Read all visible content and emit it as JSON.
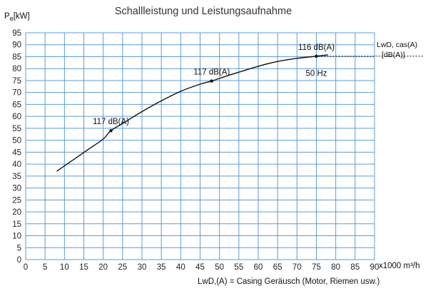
{
  "chart_data": {
    "type": "line",
    "title": "Schallleistung und Leistungsaufnahme",
    "ylabel_main": "P",
    "ylabel_sub": "e",
    "ylabel_unit": "[kW]",
    "xlabel": "x1000 m³/h",
    "xlim": [
      0,
      90
    ],
    "ylim": [
      0,
      95
    ],
    "x_ticks": [
      0,
      5,
      10,
      15,
      20,
      25,
      30,
      35,
      40,
      45,
      50,
      55,
      60,
      65,
      70,
      75,
      80,
      85,
      90
    ],
    "y_ticks": [
      0,
      5,
      10,
      15,
      20,
      25,
      30,
      35,
      40,
      45,
      50,
      55,
      60,
      65,
      70,
      75,
      80,
      85,
      90,
      95
    ],
    "grid": true,
    "series": [
      {
        "x": [
          8,
          12,
          16,
          20,
          22,
          26,
          30,
          35,
          40,
          45,
          48,
          52,
          56,
          60,
          65,
          70,
          75,
          78
        ],
        "y": [
          37,
          41.5,
          46,
          50.5,
          54,
          58,
          62,
          66.5,
          70.5,
          73.5,
          74.8,
          77,
          79,
          81,
          83,
          84.3,
          85.2,
          85.8
        ]
      }
    ],
    "markers": [
      {
        "x": 22,
        "y": 54,
        "label": "117 dB(A)"
      },
      {
        "x": 48,
        "y": 74.8,
        "label": "117 dB(A)"
      },
      {
        "x": 75,
        "y": 85.2,
        "label": "116 dB(A)"
      }
    ],
    "frequency_label": "50 Hz",
    "frequency_x": 75,
    "frequency_y": 77,
    "side_label_line1": "LwD, cas(A)",
    "side_label_line2": "[dB(A)]",
    "footnote": "LwD,(A) = Casing Geräusch (Motor, Riemen usw.)"
  }
}
